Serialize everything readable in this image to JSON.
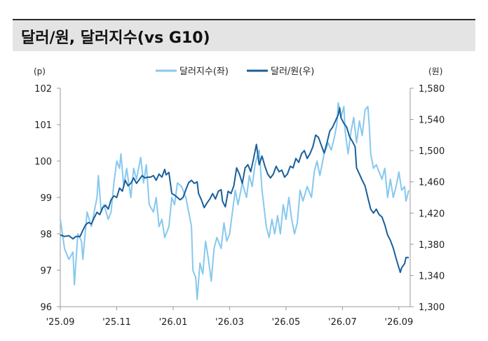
{
  "title": "달러/원, 달러지수(vs G10)",
  "chart_data": {
    "type": "line",
    "left_unit": "(p)",
    "right_unit": "(원)",
    "x_tick_labels": [
      "'25.09",
      "'25.11",
      "'26.01",
      "'26.03",
      "'26.05",
      "'26.07",
      "'26.09"
    ],
    "x_tick_values": [
      0,
      2,
      4,
      6,
      8,
      10,
      12
    ],
    "xlim": [
      0,
      12.4
    ],
    "left_ylim": [
      96,
      102
    ],
    "left_ticks": [
      "96",
      "97",
      "98",
      "99",
      "100",
      "101",
      "102"
    ],
    "right_ylim": [
      1300,
      1580
    ],
    "right_ticks": [
      "1,300",
      "1,340",
      "1,380",
      "1,420",
      "1,460",
      "1,500",
      "1,540",
      "1,580"
    ],
    "grid": false,
    "legend_position": "top",
    "series": [
      {
        "name": "달러지수(좌)",
        "axis": "left",
        "color": "#87c8ee",
        "points": [
          [
            0.0,
            98.4
          ],
          [
            0.15,
            97.6
          ],
          [
            0.3,
            97.3
          ],
          [
            0.45,
            97.5
          ],
          [
            0.5,
            96.6
          ],
          [
            0.62,
            98.0
          ],
          [
            0.75,
            97.8
          ],
          [
            0.8,
            97.3
          ],
          [
            0.95,
            98.6
          ],
          [
            1.1,
            98.2
          ],
          [
            1.2,
            98.6
          ],
          [
            1.3,
            99.0
          ],
          [
            1.35,
            99.6
          ],
          [
            1.45,
            98.6
          ],
          [
            1.55,
            98.8
          ],
          [
            1.7,
            98.4
          ],
          [
            1.8,
            98.6
          ],
          [
            1.9,
            99.4
          ],
          [
            2.0,
            100.0
          ],
          [
            2.1,
            99.8
          ],
          [
            2.15,
            100.2
          ],
          [
            2.25,
            99.3
          ],
          [
            2.35,
            99.8
          ],
          [
            2.5,
            99.0
          ],
          [
            2.6,
            99.8
          ],
          [
            2.7,
            99.5
          ],
          [
            2.8,
            99.9
          ],
          [
            2.85,
            100.1
          ],
          [
            2.95,
            99.4
          ],
          [
            3.05,
            99.9
          ],
          [
            3.15,
            98.8
          ],
          [
            3.3,
            98.6
          ],
          [
            3.4,
            99.0
          ],
          [
            3.5,
            98.2
          ],
          [
            3.6,
            98.4
          ],
          [
            3.7,
            97.9
          ],
          [
            3.85,
            98.2
          ],
          [
            3.95,
            99.0
          ],
          [
            4.05,
            98.8
          ],
          [
            4.15,
            99.4
          ],
          [
            4.3,
            99.3
          ],
          [
            4.45,
            99.0
          ],
          [
            4.55,
            98.6
          ],
          [
            4.65,
            98.2
          ],
          [
            4.7,
            97.0
          ],
          [
            4.8,
            96.8
          ],
          [
            4.85,
            96.2
          ],
          [
            4.95,
            97.2
          ],
          [
            5.05,
            96.9
          ],
          [
            5.15,
            97.8
          ],
          [
            5.25,
            97.3
          ],
          [
            5.35,
            96.7
          ],
          [
            5.45,
            97.6
          ],
          [
            5.55,
            97.9
          ],
          [
            5.7,
            97.6
          ],
          [
            5.8,
            98.3
          ],
          [
            5.9,
            97.8
          ],
          [
            6.0,
            98.0
          ],
          [
            6.1,
            98.6
          ],
          [
            6.2,
            99.2
          ],
          [
            6.3,
            98.8
          ],
          [
            6.45,
            99.4
          ],
          [
            6.6,
            99.0
          ],
          [
            6.7,
            99.6
          ],
          [
            6.8,
            99.3
          ],
          [
            6.9,
            99.9
          ],
          [
            7.0,
            100.2
          ],
          [
            7.05,
            100.3
          ],
          [
            7.15,
            99.2
          ],
          [
            7.3,
            98.2
          ],
          [
            7.4,
            97.9
          ],
          [
            7.5,
            98.4
          ],
          [
            7.6,
            98.0
          ],
          [
            7.7,
            98.5
          ],
          [
            7.8,
            98.0
          ],
          [
            7.9,
            98.8
          ],
          [
            8.0,
            98.4
          ],
          [
            8.1,
            99.0
          ],
          [
            8.2,
            98.4
          ],
          [
            8.3,
            98.0
          ],
          [
            8.4,
            98.3
          ],
          [
            8.5,
            99.2
          ],
          [
            8.6,
            98.9
          ],
          [
            8.75,
            99.3
          ],
          [
            8.9,
            99.0
          ],
          [
            9.0,
            99.7
          ],
          [
            9.1,
            100.0
          ],
          [
            9.2,
            99.6
          ],
          [
            9.35,
            100.2
          ],
          [
            9.5,
            100.5
          ],
          [
            9.6,
            100.3
          ],
          [
            9.7,
            100.6
          ],
          [
            9.8,
            101.0
          ],
          [
            9.85,
            101.6
          ],
          [
            9.95,
            101.2
          ],
          [
            10.05,
            101.5
          ],
          [
            10.1,
            100.8
          ],
          [
            10.2,
            100.2
          ],
          [
            10.3,
            100.8
          ],
          [
            10.4,
            101.2
          ],
          [
            10.5,
            100.5
          ],
          [
            10.6,
            101.1
          ],
          [
            10.7,
            100.7
          ],
          [
            10.8,
            101.4
          ],
          [
            10.9,
            101.5
          ],
          [
            10.95,
            101.0
          ],
          [
            11.0,
            100.2
          ],
          [
            11.1,
            99.8
          ],
          [
            11.2,
            99.9
          ],
          [
            11.3,
            99.7
          ],
          [
            11.4,
            99.5
          ],
          [
            11.5,
            99.8
          ],
          [
            11.6,
            99.0
          ],
          [
            11.7,
            99.5
          ],
          [
            11.8,
            99.0
          ],
          [
            11.9,
            99.3
          ],
          [
            12.0,
            99.7
          ],
          [
            12.1,
            99.2
          ],
          [
            12.2,
            99.3
          ],
          [
            12.25,
            98.9
          ],
          [
            12.35,
            99.2
          ]
        ]
      },
      {
        "name": "달러/원(우)",
        "axis": "right",
        "color": "#1a5f9a",
        "points": [
          [
            0.0,
            1392
          ],
          [
            0.15,
            1390
          ],
          [
            0.3,
            1391
          ],
          [
            0.45,
            1387
          ],
          [
            0.55,
            1390
          ],
          [
            0.7,
            1390
          ],
          [
            0.8,
            1398
          ],
          [
            0.9,
            1405
          ],
          [
            1.0,
            1408
          ],
          [
            1.1,
            1406
          ],
          [
            1.2,
            1414
          ],
          [
            1.3,
            1421
          ],
          [
            1.4,
            1418
          ],
          [
            1.5,
            1427
          ],
          [
            1.6,
            1430
          ],
          [
            1.7,
            1425
          ],
          [
            1.8,
            1437
          ],
          [
            1.9,
            1442
          ],
          [
            2.0,
            1440
          ],
          [
            2.1,
            1452
          ],
          [
            2.2,
            1448
          ],
          [
            2.3,
            1462
          ],
          [
            2.4,
            1455
          ],
          [
            2.5,
            1458
          ],
          [
            2.6,
            1465
          ],
          [
            2.7,
            1458
          ],
          [
            2.8,
            1463
          ],
          [
            2.9,
            1468
          ],
          [
            3.0,
            1465
          ],
          [
            3.1,
            1466
          ],
          [
            3.2,
            1466
          ],
          [
            3.3,
            1468
          ],
          [
            3.4,
            1462
          ],
          [
            3.5,
            1470
          ],
          [
            3.6,
            1466
          ],
          [
            3.7,
            1476
          ],
          [
            3.75,
            1469
          ],
          [
            3.85,
            1472
          ],
          [
            3.95,
            1445
          ],
          [
            4.05,
            1443
          ],
          [
            4.15,
            1440
          ],
          [
            4.25,
            1437
          ],
          [
            4.35,
            1440
          ],
          [
            4.45,
            1450
          ],
          [
            4.55,
            1459
          ],
          [
            4.65,
            1462
          ],
          [
            4.75,
            1458
          ],
          [
            4.85,
            1460
          ],
          [
            4.9,
            1445
          ],
          [
            5.0,
            1437
          ],
          [
            5.1,
            1427
          ],
          [
            5.2,
            1433
          ],
          [
            5.3,
            1438
          ],
          [
            5.4,
            1445
          ],
          [
            5.5,
            1438
          ],
          [
            5.6,
            1448
          ],
          [
            5.7,
            1450
          ],
          [
            5.75,
            1435
          ],
          [
            5.85,
            1428
          ],
          [
            5.95,
            1448
          ],
          [
            6.05,
            1445
          ],
          [
            6.15,
            1455
          ],
          [
            6.25,
            1478
          ],
          [
            6.35,
            1470
          ],
          [
            6.45,
            1458
          ],
          [
            6.55,
            1478
          ],
          [
            6.65,
            1482
          ],
          [
            6.75,
            1473
          ],
          [
            6.85,
            1490
          ],
          [
            6.95,
            1508
          ],
          [
            7.05,
            1482
          ],
          [
            7.15,
            1493
          ],
          [
            7.25,
            1480
          ],
          [
            7.35,
            1470
          ],
          [
            7.45,
            1465
          ],
          [
            7.55,
            1470
          ],
          [
            7.65,
            1480
          ],
          [
            7.75,
            1473
          ],
          [
            7.85,
            1475
          ],
          [
            7.95,
            1466
          ],
          [
            8.05,
            1470
          ],
          [
            8.15,
            1480
          ],
          [
            8.25,
            1478
          ],
          [
            8.35,
            1490
          ],
          [
            8.45,
            1485
          ],
          [
            8.55,
            1496
          ],
          [
            8.65,
            1500
          ],
          [
            8.75,
            1490
          ],
          [
            8.85,
            1496
          ],
          [
            8.95,
            1505
          ],
          [
            9.05,
            1520
          ],
          [
            9.15,
            1517
          ],
          [
            9.25,
            1507
          ],
          [
            9.35,
            1497
          ],
          [
            9.45,
            1510
          ],
          [
            9.55,
            1525
          ],
          [
            9.65,
            1530
          ],
          [
            9.75,
            1538
          ],
          [
            9.85,
            1546
          ],
          [
            9.9,
            1555
          ],
          [
            9.95,
            1542
          ],
          [
            10.05,
            1535
          ],
          [
            10.15,
            1530
          ],
          [
            10.25,
            1518
          ],
          [
            10.35,
            1512
          ],
          [
            10.45,
            1505
          ],
          [
            10.5,
            1478
          ],
          [
            10.6,
            1470
          ],
          [
            10.7,
            1462
          ],
          [
            10.8,
            1455
          ],
          [
            10.9,
            1440
          ],
          [
            11.0,
            1425
          ],
          [
            11.1,
            1420
          ],
          [
            11.2,
            1425
          ],
          [
            11.3,
            1418
          ],
          [
            11.4,
            1415
          ],
          [
            11.5,
            1405
          ],
          [
            11.6,
            1392
          ],
          [
            11.7,
            1385
          ],
          [
            11.8,
            1375
          ],
          [
            11.9,
            1362
          ],
          [
            12.0,
            1350
          ],
          [
            12.05,
            1344
          ],
          [
            12.1,
            1350
          ],
          [
            12.2,
            1355
          ],
          [
            12.25,
            1363
          ],
          [
            12.35,
            1363
          ]
        ]
      }
    ]
  }
}
